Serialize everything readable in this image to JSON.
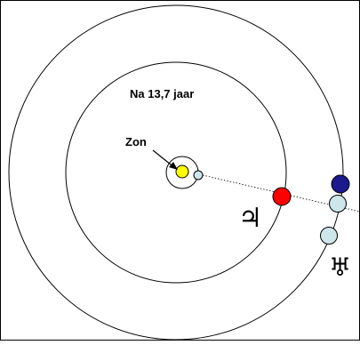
{
  "diagram": {
    "caption": "Na 13,7 jaar",
    "sun_label": "Zon",
    "jupiter_symbol": "♃",
    "uranus_symbol": "♅",
    "colors": {
      "sun": "#ffff00",
      "earth": "#cce6ea",
      "jupiter": "#ff0000",
      "blue_body": "#1a1a8c",
      "uranus": "#cce6ea",
      "orbit": "#000000",
      "frame": "#000000"
    }
  }
}
